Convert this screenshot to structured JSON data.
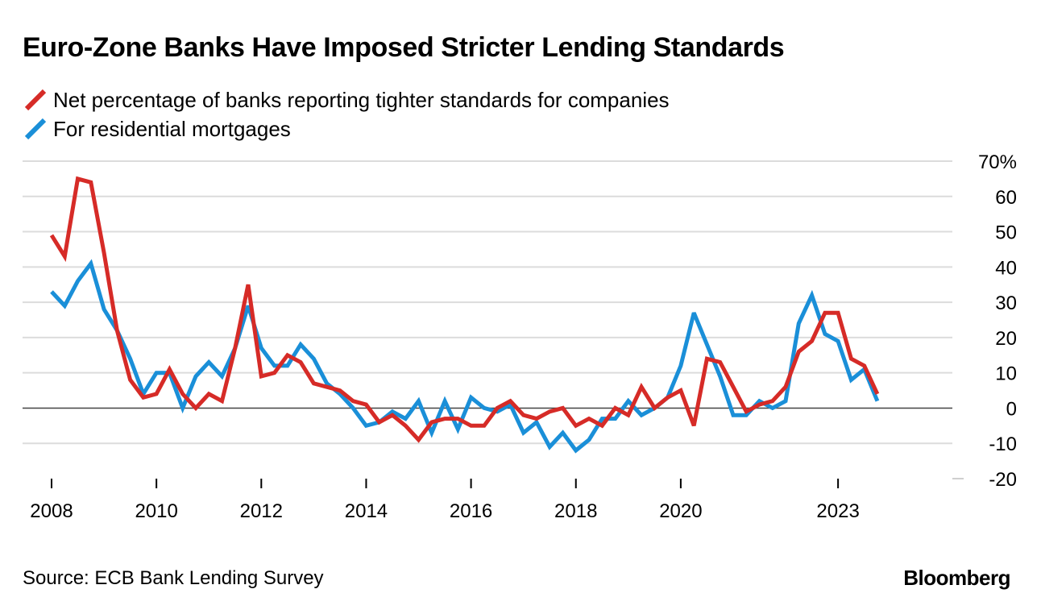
{
  "header": {
    "title": "Euro-Zone Banks Have Imposed Stricter Lending Standards"
  },
  "legend": [
    {
      "label": "Net percentage of banks reporting tighter standards for companies",
      "color": "#d62b27"
    },
    {
      "label": "For residential mortgages",
      "color": "#1a8fd8"
    }
  ],
  "footer": {
    "source": "Source: ECB Bank Lending Survey",
    "brand": "Bloomberg"
  },
  "chart_data": {
    "type": "line",
    "title": "Euro-Zone Banks Have Imposed Stricter Lending Standards",
    "xlabel": "",
    "ylabel": "",
    "ylim": [
      -20,
      70
    ],
    "xlim": [
      2008.0,
      2024.75
    ],
    "grid": true,
    "legend_position": "top-left",
    "y_ticks": [
      {
        "value": 70,
        "label": "70%"
      },
      {
        "value": 60,
        "label": "60"
      },
      {
        "value": 50,
        "label": "50"
      },
      {
        "value": 40,
        "label": "40"
      },
      {
        "value": 30,
        "label": "30"
      },
      {
        "value": 20,
        "label": "20"
      },
      {
        "value": 10,
        "label": "10"
      },
      {
        "value": 0,
        "label": "0"
      },
      {
        "value": -10,
        "label": "-10"
      },
      {
        "value": -20,
        "label": "-20"
      }
    ],
    "x_ticks": [
      {
        "value": 2008,
        "label": "2008"
      },
      {
        "value": 2010,
        "label": "2010"
      },
      {
        "value": 2012,
        "label": "2012"
      },
      {
        "value": 2014,
        "label": "2014"
      },
      {
        "value": 2016,
        "label": "2016"
      },
      {
        "value": 2018,
        "label": "2018"
      },
      {
        "value": 2020,
        "label": "2020"
      },
      {
        "value": 2023,
        "label": "2023"
      }
    ],
    "x_start": 2008.0,
    "x_step": 0.25,
    "series": [
      {
        "name": "Net percentage of banks reporting tighter standards for companies",
        "color": "#d62b27",
        "values": [
          49,
          43,
          65,
          64,
          44,
          22,
          8,
          3,
          4,
          11,
          4,
          0,
          4,
          2,
          17,
          35,
          9,
          10,
          15,
          13,
          7,
          6,
          5,
          2,
          1,
          -4,
          -2,
          -5,
          -9,
          -4,
          -3,
          -3,
          -5,
          -5,
          0,
          2,
          -2,
          -3,
          -1,
          0,
          -5,
          -3,
          -5,
          0,
          -2,
          6,
          0,
          3,
          5,
          -5,
          14,
          13,
          6,
          -1,
          1,
          2,
          6,
          16,
          19,
          27,
          27,
          14,
          12,
          4
        ]
      },
      {
        "name": "For residential mortgages",
        "color": "#1a8fd8",
        "values": [
          33,
          29,
          36,
          41,
          28,
          22,
          14,
          4,
          10,
          10,
          0,
          9,
          13,
          9,
          17,
          29,
          17,
          12,
          12,
          18,
          14,
          7,
          4,
          0,
          -5,
          -4,
          -1,
          -3,
          2,
          -7,
          2,
          -6,
          3,
          0,
          -1,
          1,
          -7,
          -4,
          -11,
          -7,
          -12,
          -9,
          -3,
          -3,
          2,
          -2,
          0,
          3,
          12,
          27,
          18,
          9,
          -2,
          -2,
          2,
          0,
          2,
          24,
          32,
          21,
          19,
          8,
          11,
          2
        ]
      }
    ]
  }
}
